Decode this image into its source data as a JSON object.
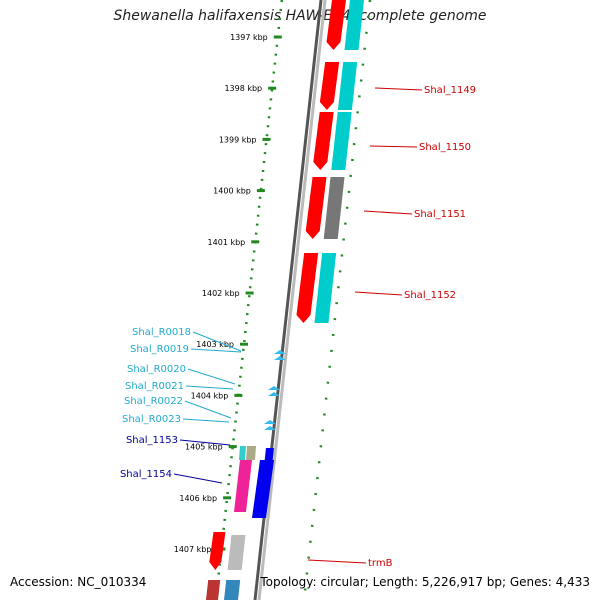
{
  "title": "Shewanella halifaxensis HAW-EB4, complete genome",
  "footer": {
    "accession": "Accession: NC_010334",
    "summary": "Topology: circular; Length: 5,226,917 bp; Genes: 4,433"
  },
  "colors": {
    "forward_gene": "#ff0000",
    "forward_cds": "#00cccc",
    "grey_cds": "#777777",
    "rna": "#33bbee",
    "blue_gene": "#0000ee",
    "pink_gene": "#ee2299",
    "axis": "#777777",
    "ruler": "#228822"
  },
  "ruler_ticks": [
    {
      "label": "1397 kbp"
    },
    {
      "label": "1398 kbp"
    },
    {
      "label": "1399 kbp"
    },
    {
      "label": "1400 kbp"
    },
    {
      "label": "1401 kbp"
    },
    {
      "label": "1402 kbp"
    },
    {
      "label": "1403 kbp"
    },
    {
      "label": "1404 kbp"
    },
    {
      "label": "1405 kbp"
    },
    {
      "label": "1406 kbp"
    },
    {
      "label": "1407 kbp"
    }
  ],
  "gene_labels_right": [
    {
      "label": "Shal_1149"
    },
    {
      "label": "Shal_1150"
    },
    {
      "label": "Shal_1151"
    },
    {
      "label": "Shal_1152"
    },
    {
      "label": "trmB"
    }
  ],
  "gene_labels_left": [
    {
      "label": "Shal_R0018"
    },
    {
      "label": "Shal_R0019"
    },
    {
      "label": "Shal_R0020"
    },
    {
      "label": "Shal_R0021"
    },
    {
      "label": "Shal_R0022"
    },
    {
      "label": "Shal_R0023"
    },
    {
      "label": "Shal_1153"
    },
    {
      "label": "Shal_1154"
    }
  ]
}
